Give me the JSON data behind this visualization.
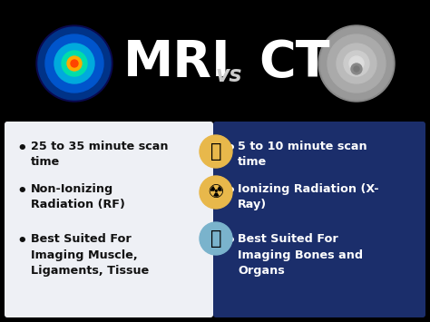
{
  "title_left": "MRI",
  "title_vs": "vs",
  "title_right": "CT",
  "bg_color": "#000000",
  "left_panel_color": "#eef0f5",
  "right_panel_color": "#1b2e6b",
  "left_text_color": "#111111",
  "right_text_color": "#ffffff",
  "title_color": "#ffffff",
  "vs_color": "#cccccc",
  "left_bullets": [
    "25 to 35 minute scan\ntime",
    "Non-Ionizing\nRadiation (RF)",
    "Best Suited For\nImaging Muscle,\nLigaments, Tissue"
  ],
  "right_bullets": [
    "5 to 10 minute scan\ntime",
    "Ionizing Radiation (X-\nRay)",
    "Best Suited For\nImaging Bones and\nOrgans"
  ],
  "icon_bg_colors": [
    "#e8b84b",
    "#e8b84b",
    "#7ab3cc"
  ],
  "figsize": [
    4.74,
    3.55
  ],
  "dpi": 100
}
